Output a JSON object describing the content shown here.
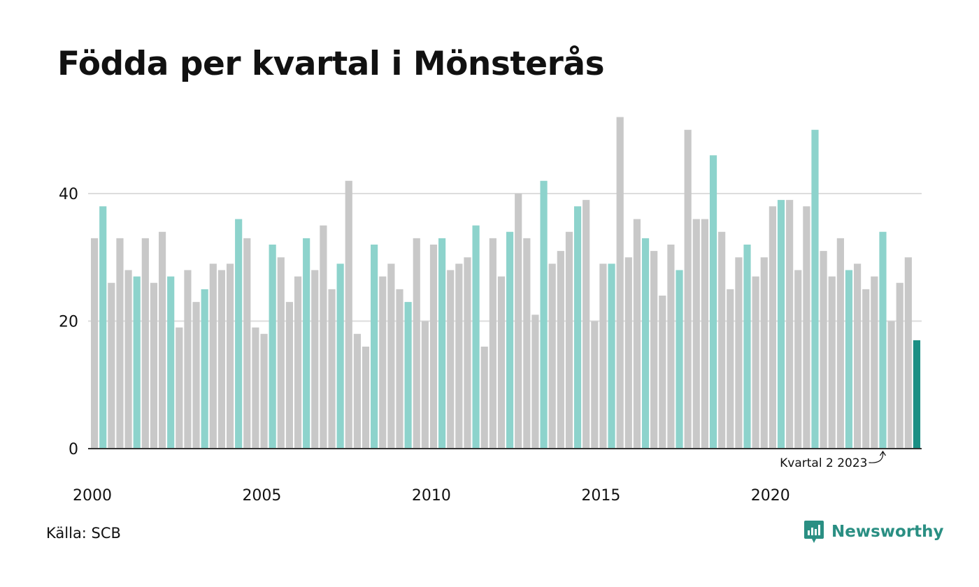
{
  "chart_data": {
    "type": "bar",
    "title": "Födda per kvartal i Mönsterås",
    "xlabel": "",
    "ylabel": "",
    "ylim": [
      0,
      53
    ],
    "yticks": [
      "0",
      "20",
      "40"
    ],
    "xtick_labels": [
      "2000",
      "2005",
      "2010",
      "2015",
      "2020"
    ],
    "grid": true,
    "highlight_quarter": 2,
    "colors": {
      "default": "#c8c8c8",
      "highlight": "#8dd3cc",
      "latest": "#1a8f84",
      "grid": "#dddddd",
      "axis": "#333333"
    },
    "categories": [
      "2000 Q1",
      "2000 Q2",
      "2000 Q3",
      "2000 Q4",
      "2001 Q1",
      "2001 Q2",
      "2001 Q3",
      "2001 Q4",
      "2002 Q1",
      "2002 Q2",
      "2002 Q3",
      "2002 Q4",
      "2003 Q1",
      "2003 Q2",
      "2003 Q3",
      "2003 Q4",
      "2004 Q1",
      "2004 Q2",
      "2004 Q3",
      "2004 Q4",
      "2005 Q1",
      "2005 Q2",
      "2005 Q3",
      "2005 Q4",
      "2006 Q1",
      "2006 Q2",
      "2006 Q3",
      "2006 Q4",
      "2007 Q1",
      "2007 Q2",
      "2007 Q3",
      "2007 Q4",
      "2008 Q1",
      "2008 Q2",
      "2008 Q3",
      "2008 Q4",
      "2009 Q1",
      "2009 Q2",
      "2009 Q3",
      "2009 Q4",
      "2010 Q1",
      "2010 Q2",
      "2010 Q3",
      "2010 Q4",
      "2011 Q1",
      "2011 Q2",
      "2011 Q3",
      "2011 Q4",
      "2012 Q1",
      "2012 Q2",
      "2012 Q3",
      "2012 Q4",
      "2013 Q1",
      "2013 Q2",
      "2013 Q3",
      "2013 Q4",
      "2014 Q1",
      "2014 Q2",
      "2014 Q3",
      "2014 Q4",
      "2015 Q1",
      "2015 Q2",
      "2015 Q3",
      "2015 Q4",
      "2016 Q1",
      "2016 Q2",
      "2016 Q3",
      "2016 Q4",
      "2017 Q1",
      "2017 Q2",
      "2017 Q3",
      "2017 Q4",
      "2018 Q1",
      "2018 Q2",
      "2018 Q3",
      "2018 Q4",
      "2019 Q1",
      "2019 Q2",
      "2019 Q3",
      "2019 Q4",
      "2020 Q1",
      "2020 Q2",
      "2020 Q3",
      "2020 Q4",
      "2021 Q1",
      "2021 Q2",
      "2021 Q3",
      "2021 Q4",
      "2022 Q1",
      "2022 Q2",
      "2022 Q3",
      "2022 Q4",
      "2023 Q1",
      "2023 Q2",
      "2023 Q3",
      "2023 Q4",
      "2024 Q1",
      "2024 Q2"
    ],
    "values": [
      33,
      38,
      26,
      33,
      28,
      27,
      33,
      26,
      34,
      27,
      19,
      28,
      23,
      25,
      29,
      28,
      29,
      36,
      33,
      19,
      18,
      32,
      30,
      23,
      27,
      33,
      28,
      35,
      25,
      29,
      42,
      18,
      16,
      32,
      27,
      29,
      25,
      23,
      33,
      20,
      32,
      33,
      28,
      29,
      30,
      35,
      16,
      33,
      27,
      34,
      40,
      33,
      21,
      42,
      29,
      31,
      34,
      38,
      39,
      20,
      29,
      29,
      52,
      30,
      36,
      33,
      31,
      24,
      32,
      28,
      50,
      36,
      36,
      46,
      34,
      25,
      30,
      32,
      27,
      30,
      38,
      39,
      39,
      28,
      38,
      50,
      31,
      27,
      33,
      28,
      29,
      25,
      27,
      34,
      20,
      26,
      30,
      17
    ],
    "annotation": {
      "label": "Kvartal 2 2023",
      "target": "2023 Q2"
    }
  },
  "footer": {
    "source": "Källa: SCB",
    "brand": "Newsworthy"
  }
}
